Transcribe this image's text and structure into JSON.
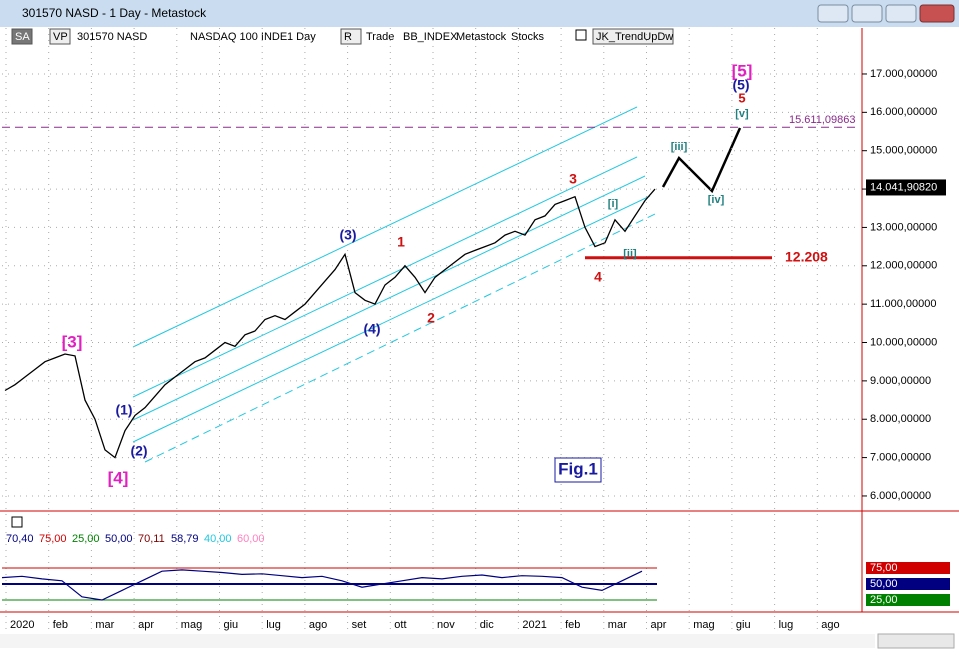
{
  "window": {
    "title": "301570 NASD - 1 Day - Metastock"
  },
  "toolbar": {
    "items": [
      "SA",
      "VP",
      "301570 NASD",
      "NASDAQ 100 INDE",
      "1 Day",
      "R",
      "Trade",
      "BB_INDEX",
      "Metastock",
      "Stocks",
      "JK_TrendUpDw"
    ]
  },
  "price_chart": {
    "series": {
      "name": "301570 NASD",
      "color": "#000000",
      "values": [
        8750,
        8900,
        9100,
        9300,
        9500,
        9600,
        9700,
        9650,
        8500,
        8000,
        7200,
        7000,
        7700,
        8100,
        8300,
        8600,
        8900,
        9100,
        9300,
        9500,
        9600,
        9800,
        10000,
        9900,
        10200,
        10300,
        10600,
        10700,
        10600,
        10800,
        11000,
        11300,
        11600,
        11900,
        12300,
        11300,
        11100,
        11000,
        11500,
        11700,
        12000,
        11700,
        11300,
        11700,
        11900,
        12100,
        12300,
        12400,
        12500,
        12600,
        12800,
        12900,
        12800,
        13200,
        13300,
        13600,
        13700,
        13800,
        13000,
        12500,
        12600,
        13200,
        12900,
        13300,
        13700,
        14000
      ]
    },
    "ylim": [
      5634,
      17625
    ],
    "yticks": [
      {
        "value": 6000,
        "label": "6.000,00000"
      },
      {
        "value": 7000,
        "label": "7.000,00000"
      },
      {
        "value": 8000,
        "label": "8.000,00000"
      },
      {
        "value": 9000,
        "label": "9.000,00000"
      },
      {
        "value": 10000,
        "label": "10.000,00000"
      },
      {
        "value": 11000,
        "label": "11.000,00000"
      },
      {
        "value": 12000,
        "label": "12.000,00000"
      },
      {
        "value": 13000,
        "label": "13.000,00000"
      },
      {
        "value": 14000,
        "label": "14.000,00000"
      },
      {
        "value": 15000,
        "label": "15.000,00000"
      },
      {
        "value": 16000,
        "label": "16.000,00000"
      },
      {
        "value": 17000,
        "label": "17.000,00000"
      }
    ],
    "months": [
      "2020",
      "feb",
      "mar",
      "apr",
      "mag",
      "giu",
      "lug",
      "ago",
      "set",
      "ott",
      "nov",
      "dic",
      "2021",
      "feb",
      "mar",
      "apr",
      "mag",
      "giu",
      "lug",
      "ago"
    ],
    "last_price": {
      "value": 14041.9082,
      "label": "14.041,90820"
    },
    "target_level": {
      "value": 15611.09863,
      "label": "15.611,09863"
    },
    "support_level": {
      "value": 12208,
      "label": "12.208"
    },
    "wave_labels": [
      "[3]",
      "[4]",
      "[5]",
      "(1)",
      "(2)",
      "(3)",
      "(4)",
      "(5)",
      "1",
      "2",
      "3",
      "4",
      "5",
      "[i]",
      "[ii]",
      "[iii]",
      "[iv]",
      "[v]"
    ],
    "figure_label": "Fig.1"
  },
  "indicator": {
    "legend": [
      "70,40",
      "75,00",
      "25,00",
      "50,00",
      "70,11",
      "58,79",
      "40,00",
      "60,00"
    ],
    "levels": [
      {
        "value": 25,
        "label": "25,00"
      },
      {
        "value": 50,
        "label": "50,00"
      },
      {
        "value": 75,
        "label": "75,00"
      }
    ],
    "values": [
      60,
      62,
      58,
      55,
      30,
      25,
      40,
      55,
      70,
      72,
      70,
      68,
      65,
      66,
      63,
      60,
      62,
      55,
      45,
      50,
      55,
      60,
      58,
      62,
      64,
      60,
      63,
      62,
      60,
      45,
      40,
      55,
      70
    ]
  }
}
